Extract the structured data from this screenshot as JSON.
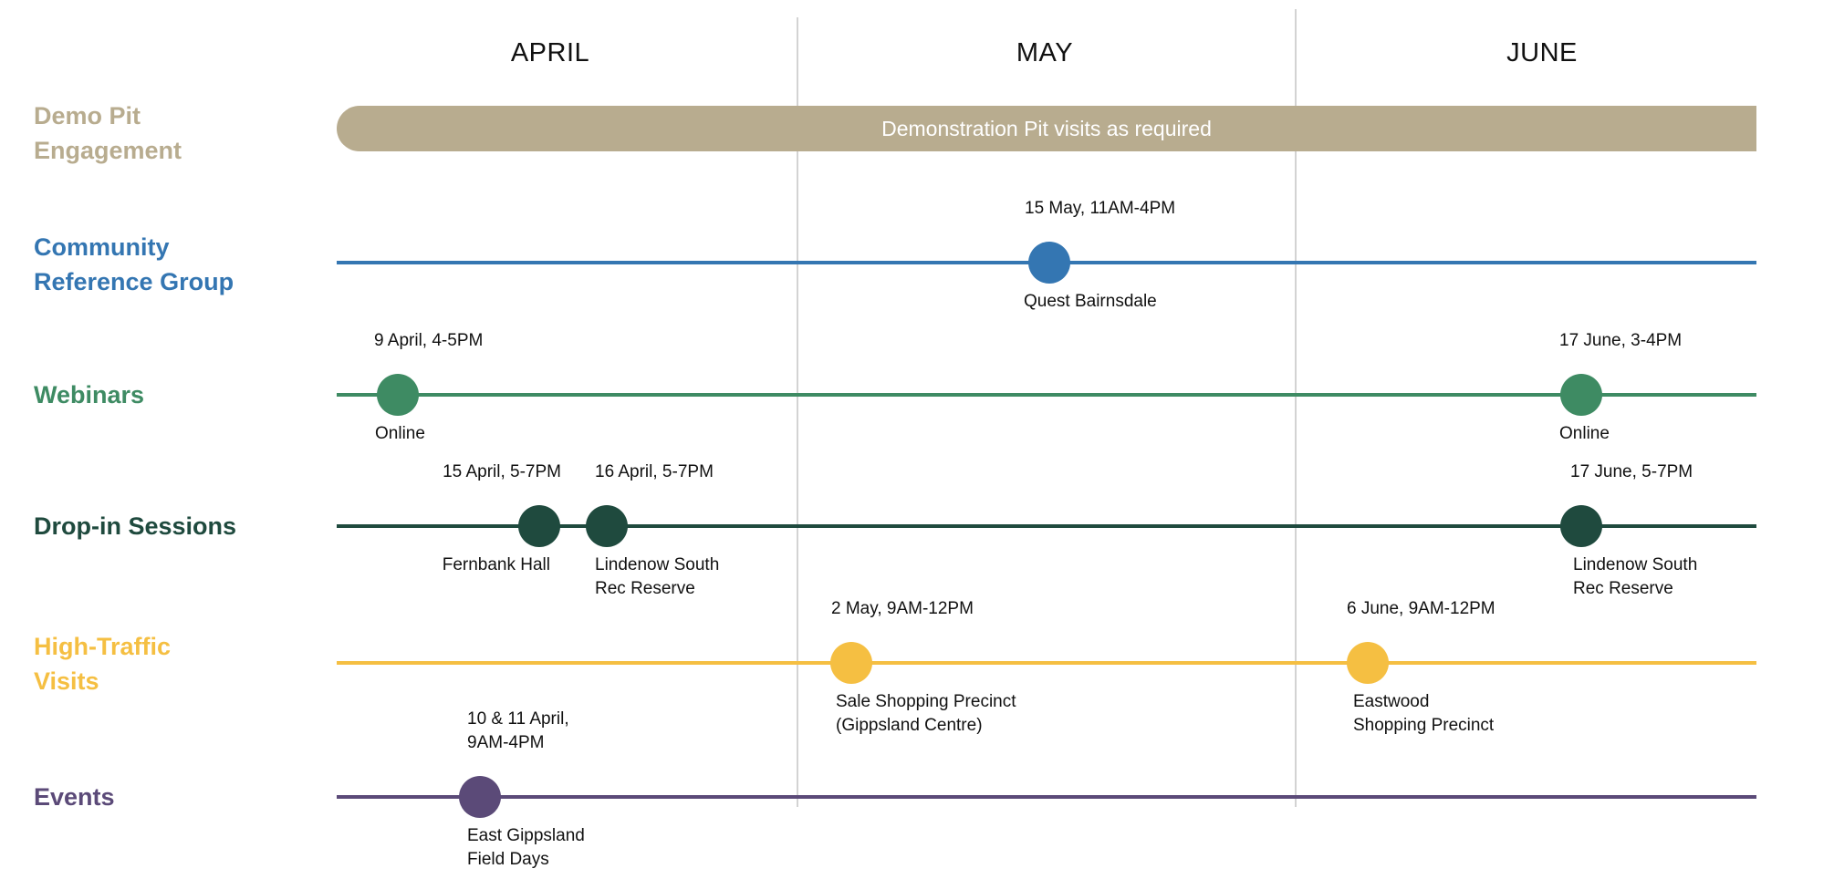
{
  "months": [
    "APRIL",
    "MAY",
    "JUNE"
  ],
  "colors": {
    "demo": "#b8ac8f",
    "crg": "#3476b2",
    "webinars": "#3e8b63",
    "dropin": "#1f4a3e",
    "hightraffic": "#f5bf42",
    "events": "#5b4a78",
    "divider": "#d3d3d3"
  },
  "rows": [
    {
      "key": "demo",
      "label": "Demo Pit\nEngagement",
      "bar_text": "Demonstration Pit visits as required",
      "events": []
    },
    {
      "key": "crg",
      "label": "Community\nReference Group",
      "events": [
        {
          "date": "15 May, 11AM-4PM",
          "location": "Quest Bairnsdale"
        }
      ]
    },
    {
      "key": "webinars",
      "label": "Webinars",
      "events": [
        {
          "date": "9 April, 4-5PM",
          "location": "Online"
        },
        {
          "date": "17 June, 3-4PM",
          "location": "Online"
        }
      ]
    },
    {
      "key": "dropin",
      "label": "Drop-in Sessions",
      "events": [
        {
          "date": "15 April, 5-7PM",
          "location": "Fernbank Hall"
        },
        {
          "date": "16 April, 5-7PM",
          "location": "Lindenow South\nRec Reserve"
        },
        {
          "date": "17 June, 5-7PM",
          "location": "Lindenow South\nRec Reserve"
        }
      ]
    },
    {
      "key": "hightraffic",
      "label": "High-Traffic\nVisits",
      "events": [
        {
          "date": "2 May, 9AM-12PM",
          "location": "Sale Shopping Precinct\n(Gippsland Centre)"
        },
        {
          "date": "6 June, 9AM-12PM",
          "location": "Eastwood\nShopping Precinct"
        }
      ]
    },
    {
      "key": "events",
      "label": "Events",
      "events": [
        {
          "date": "10 & 11 April,\n9AM-4PM",
          "location": "East Gippsland\nField Days"
        }
      ]
    }
  ]
}
